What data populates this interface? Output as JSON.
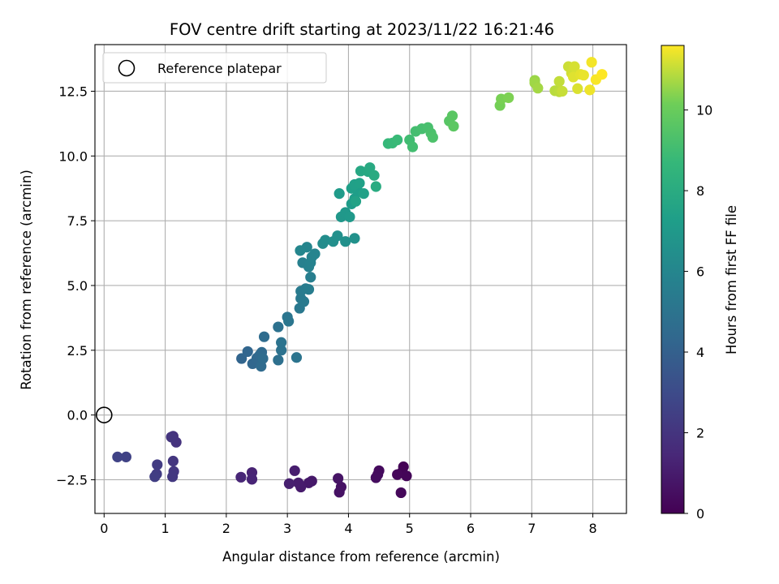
{
  "chart_data": {
    "type": "scatter",
    "title": "FOV centre drift starting at 2023/11/22 16:21:46",
    "xlabel": "Angular distance from reference (arcmin)",
    "ylabel": "Rotation from reference (arcmin)",
    "xlim": [
      -0.15,
      8.55
    ],
    "ylim": [
      -3.8,
      14.3
    ],
    "x_ticks": [
      0,
      1,
      2,
      3,
      4,
      5,
      6,
      7,
      8
    ],
    "y_ticks": [
      -2.5,
      0.0,
      2.5,
      5.0,
      7.5,
      10.0,
      12.5
    ],
    "x_tick_labels": [
      "0",
      "1",
      "2",
      "3",
      "4",
      "5",
      "6",
      "7",
      "8"
    ],
    "y_tick_labels": [
      "−2.5",
      "0.0",
      "2.5",
      "5.0",
      "7.5",
      "10.0",
      "12.5"
    ],
    "grid": true,
    "legend": {
      "placement": "top-left",
      "entries": [
        "Reference platepar"
      ]
    },
    "reference_point": {
      "name": "Reference platepar",
      "x": 0,
      "y": 0
    },
    "colorbar": {
      "label": "Hours from first FF file",
      "colormap": "viridis",
      "range": [
        0,
        11.6
      ],
      "ticks": [
        0,
        2,
        4,
        6,
        8,
        10
      ],
      "tick_labels": [
        "0",
        "2",
        "4",
        "6",
        "8",
        "10"
      ]
    },
    "points": [
      [
        4.9,
        -2.0,
        0.05
      ],
      [
        4.88,
        -2.2,
        0.1
      ],
      [
        4.95,
        -2.35,
        0.15
      ],
      [
        4.8,
        -2.3,
        0.2
      ],
      [
        4.86,
        -3.0,
        0.25
      ],
      [
        4.5,
        -2.15,
        0.35
      ],
      [
        4.48,
        -2.3,
        0.4
      ],
      [
        4.45,
        -2.42,
        0.45
      ],
      [
        3.88,
        -2.78,
        0.6
      ],
      [
        3.85,
        -2.98,
        0.65
      ],
      [
        3.83,
        -2.45,
        0.7
      ],
      [
        3.4,
        -2.55,
        0.85
      ],
      [
        3.35,
        -2.62,
        0.9
      ],
      [
        3.22,
        -2.78,
        0.95
      ],
      [
        3.18,
        -2.62,
        1.0
      ],
      [
        3.12,
        -2.15,
        1.05
      ],
      [
        3.03,
        -2.65,
        1.1
      ],
      [
        2.42,
        -2.22,
        1.3
      ],
      [
        2.42,
        -2.48,
        1.35
      ],
      [
        2.24,
        -2.4,
        1.4
      ],
      [
        1.13,
        -0.82,
        1.9
      ],
      [
        1.18,
        -1.05,
        1.95
      ],
      [
        1.1,
        -0.85,
        2.0
      ],
      [
        1.13,
        -1.78,
        2.05
      ],
      [
        1.14,
        -2.18,
        2.1
      ],
      [
        1.12,
        -2.38,
        2.15
      ],
      [
        0.87,
        -1.92,
        2.3
      ],
      [
        0.86,
        -2.28,
        2.35
      ],
      [
        0.83,
        -2.38,
        2.4
      ],
      [
        0.36,
        -1.62,
        2.6
      ],
      [
        0.22,
        -1.62,
        2.65
      ],
      [
        2.25,
        2.18,
        4.2
      ],
      [
        2.35,
        2.45,
        4.25
      ],
      [
        2.43,
        1.98,
        4.3
      ],
      [
        2.5,
        2.2,
        4.35
      ],
      [
        2.55,
        2.32,
        4.4
      ],
      [
        2.58,
        2.42,
        4.45
      ],
      [
        2.57,
        1.88,
        4.5
      ],
      [
        2.6,
        2.18,
        4.55
      ],
      [
        2.62,
        3.02,
        4.6
      ],
      [
        2.85,
        2.12,
        4.8
      ],
      [
        2.85,
        3.4,
        4.85
      ],
      [
        2.9,
        2.5,
        4.9
      ],
      [
        2.9,
        2.8,
        4.95
      ],
      [
        3.15,
        2.22,
        5.0
      ],
      [
        3.0,
        3.78,
        5.1
      ],
      [
        3.02,
        3.62,
        5.15
      ],
      [
        3.2,
        4.12,
        5.25
      ],
      [
        3.22,
        4.5,
        5.3
      ],
      [
        3.27,
        4.38,
        5.35
      ],
      [
        3.22,
        4.78,
        5.4
      ],
      [
        3.3,
        4.88,
        5.45
      ],
      [
        3.35,
        4.85,
        5.5
      ],
      [
        3.38,
        5.32,
        5.55
      ],
      [
        3.25,
        5.88,
        5.7
      ],
      [
        3.35,
        5.72,
        5.75
      ],
      [
        3.38,
        5.88,
        5.8
      ],
      [
        3.4,
        6.1,
        5.85
      ],
      [
        3.45,
        6.22,
        5.9
      ],
      [
        3.32,
        6.48,
        5.95
      ],
      [
        3.21,
        6.35,
        6.0
      ],
      [
        3.58,
        6.62,
        6.3
      ],
      [
        3.62,
        6.75,
        6.35
      ],
      [
        3.75,
        6.7,
        6.45
      ],
      [
        3.82,
        6.92,
        6.5
      ],
      [
        3.95,
        6.7,
        6.55
      ],
      [
        4.1,
        6.82,
        6.6
      ],
      [
        3.88,
        7.65,
        6.9
      ],
      [
        3.95,
        7.82,
        6.95
      ],
      [
        4.02,
        7.65,
        7.0
      ],
      [
        3.85,
        8.55,
        7.1
      ],
      [
        4.05,
        8.15,
        7.15
      ],
      [
        4.1,
        8.35,
        7.2
      ],
      [
        4.15,
        8.65,
        7.25
      ],
      [
        4.05,
        8.75,
        7.3
      ],
      [
        4.1,
        8.9,
        7.35
      ],
      [
        4.18,
        8.95,
        7.4
      ],
      [
        4.25,
        8.55,
        7.45
      ],
      [
        4.12,
        8.25,
        7.5
      ],
      [
        4.2,
        9.42,
        7.8
      ],
      [
        4.32,
        9.4,
        7.85
      ],
      [
        4.35,
        9.55,
        7.9
      ],
      [
        4.42,
        9.25,
        7.95
      ],
      [
        4.45,
        8.82,
        8.0
      ],
      [
        4.65,
        10.48,
        8.7
      ],
      [
        4.72,
        10.5,
        8.75
      ],
      [
        4.8,
        10.62,
        8.8
      ],
      [
        5.0,
        10.62,
        9.0
      ],
      [
        5.05,
        10.35,
        9.05
      ],
      [
        5.1,
        10.95,
        9.1
      ],
      [
        5.2,
        11.05,
        9.15
      ],
      [
        5.3,
        11.1,
        9.2
      ],
      [
        5.35,
        10.88,
        9.25
      ],
      [
        5.38,
        10.72,
        9.3
      ],
      [
        5.65,
        11.35,
        9.6
      ],
      [
        5.7,
        11.55,
        9.65
      ],
      [
        5.72,
        11.15,
        9.7
      ],
      [
        6.48,
        11.95,
        10.2
      ],
      [
        6.5,
        12.2,
        10.25
      ],
      [
        6.62,
        12.25,
        10.3
      ],
      [
        7.05,
        12.92,
        10.6
      ],
      [
        7.05,
        12.82,
        10.65
      ],
      [
        7.1,
        12.62,
        10.7
      ],
      [
        7.38,
        12.52,
        10.9
      ],
      [
        7.45,
        12.48,
        10.95
      ],
      [
        7.45,
        12.88,
        11.0
      ],
      [
        7.5,
        12.5,
        11.05
      ],
      [
        7.6,
        13.45,
        11.1
      ],
      [
        7.65,
        13.2,
        11.15
      ],
      [
        7.7,
        13.45,
        11.2
      ],
      [
        7.75,
        12.6,
        11.25
      ],
      [
        7.68,
        13.05,
        11.3
      ],
      [
        7.8,
        13.15,
        11.35
      ],
      [
        7.85,
        13.12,
        11.4
      ],
      [
        7.95,
        12.55,
        11.45
      ],
      [
        7.98,
        13.62,
        11.5
      ],
      [
        8.05,
        12.95,
        11.55
      ],
      [
        8.15,
        13.15,
        11.6
      ]
    ]
  }
}
